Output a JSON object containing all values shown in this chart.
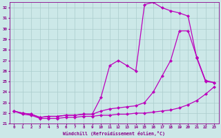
{
  "xlabel": "Windchill (Refroidissement éolien,°C)",
  "background_color": "#cce8e8",
  "grid_color": "#aacccc",
  "line_color": "#bb00bb",
  "xlim_min": -0.5,
  "xlim_max": 23.5,
  "ylim_min": 21.0,
  "ylim_max": 32.5,
  "yticks": [
    21,
    22,
    23,
    24,
    25,
    26,
    27,
    28,
    29,
    30,
    31,
    32
  ],
  "xticks": [
    0,
    1,
    2,
    3,
    4,
    5,
    6,
    7,
    8,
    9,
    10,
    11,
    12,
    13,
    14,
    15,
    16,
    17,
    18,
    19,
    20,
    21,
    22,
    23
  ],
  "line1_x": [
    0,
    1,
    2,
    3,
    4,
    5,
    6,
    7,
    8,
    9,
    10,
    11,
    12,
    13,
    14,
    15,
    16,
    17,
    18,
    19,
    20,
    21,
    22,
    23
  ],
  "line1_y": [
    22.2,
    21.9,
    21.8,
    21.5,
    21.5,
    21.5,
    21.6,
    21.6,
    21.7,
    21.7,
    21.8,
    21.8,
    21.9,
    21.9,
    22.0,
    22.0,
    22.1,
    22.2,
    22.3,
    22.5,
    22.8,
    23.2,
    23.8,
    24.5
  ],
  "line2_x": [
    0,
    1,
    2,
    3,
    4,
    5,
    6,
    7,
    8,
    9,
    10,
    11,
    12,
    13,
    14,
    15,
    16,
    17,
    18,
    19,
    20,
    21,
    22,
    23
  ],
  "line2_y": [
    22.2,
    22.0,
    21.9,
    21.6,
    21.7,
    21.7,
    21.8,
    21.8,
    21.9,
    21.9,
    22.2,
    22.4,
    22.5,
    22.6,
    22.7,
    23.0,
    24.0,
    25.5,
    27.0,
    29.8,
    29.8,
    27.3,
    25.1,
    24.9
  ],
  "line3_x": [
    0,
    1,
    2,
    3,
    4,
    5,
    6,
    7,
    8,
    9,
    10,
    11,
    12,
    13,
    14,
    15,
    16,
    17,
    18,
    19,
    20,
    21,
    22,
    23
  ],
  "line3_y": [
    22.2,
    22.0,
    21.9,
    21.6,
    21.7,
    21.7,
    21.8,
    21.8,
    21.9,
    21.9,
    23.5,
    26.5,
    27.0,
    26.5,
    26.0,
    32.3,
    32.5,
    32.0,
    31.7,
    31.5,
    31.2,
    27.2,
    25.0,
    24.9
  ]
}
